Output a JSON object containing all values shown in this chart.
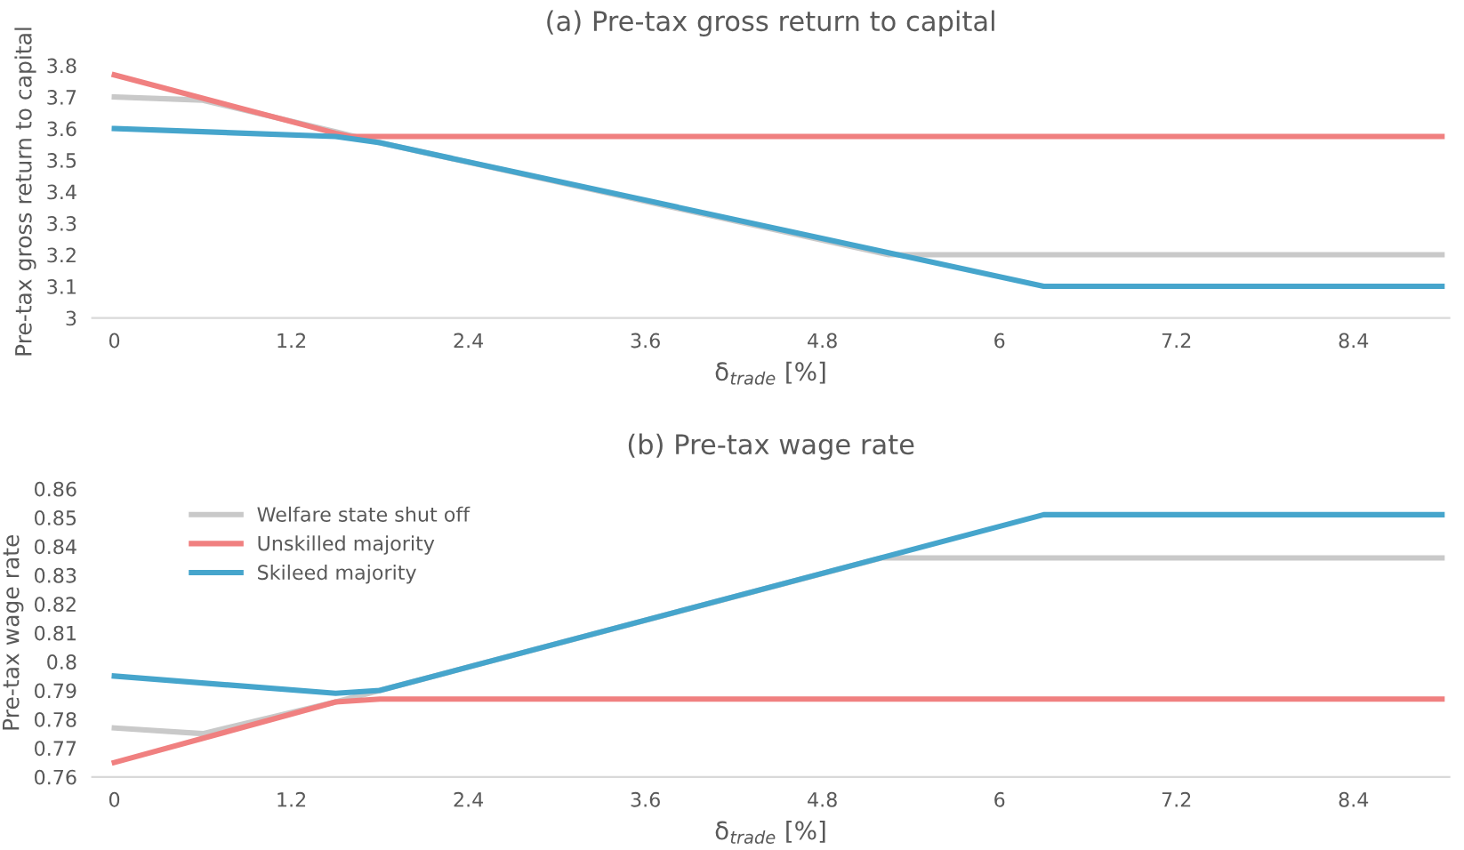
{
  "chart_data": [
    {
      "type": "line",
      "title": "(a) Pre-tax gross return to capital",
      "xlabel": "δ$_{trade}$ [%]",
      "ylabel": "Pre-tax gross return to capital",
      "xlim": [
        -0.15,
        9.05
      ],
      "xticks": [
        0,
        1.2,
        2.4,
        3.6,
        4.8,
        6,
        7.2,
        8.4
      ],
      "ylim": [
        3,
        3.8
      ],
      "yticks": [
        3,
        3.1,
        3.2,
        3.3,
        3.4,
        3.5,
        3.6,
        3.7,
        3.8
      ],
      "grid": false,
      "legend": false,
      "marker": "none",
      "line_style": "solid",
      "series": [
        {
          "color": "#c9c9c9",
          "x": [
            0,
            0.6,
            1.5,
            1.8,
            5.25,
            9
          ],
          "values": [
            3.7,
            3.69,
            3.59,
            3.555,
            3.2,
            3.2
          ]
        },
        {
          "color": "#f08080",
          "x": [
            0,
            1.5,
            1.6,
            9
          ],
          "values": [
            3.77,
            3.585,
            3.575,
            3.575
          ]
        },
        {
          "color": "#46a5cc",
          "x": [
            0,
            1.5,
            1.8,
            6.3,
            9
          ],
          "values": [
            3.6,
            3.575,
            3.555,
            3.1,
            3.1
          ]
        }
      ]
    },
    {
      "type": "line",
      "title": "(b) Pre-tax wage rate",
      "xlabel": "δ$_{trade}$ [%]",
      "ylabel": "Pre-tax wage rate",
      "xlim": [
        -0.15,
        9.05
      ],
      "xticks": [
        0,
        1.2,
        2.4,
        3.6,
        4.8,
        6,
        7.2,
        8.4
      ],
      "ylim": [
        0.76,
        0.86
      ],
      "yticks": [
        0.76,
        0.77,
        0.78,
        0.79,
        0.8,
        0.81,
        0.82,
        0.83,
        0.84,
        0.85,
        0.86
      ],
      "grid": false,
      "legend": "top left",
      "marker": "none",
      "line_style": "solid",
      "series": [
        {
          "name": "Welfare state shut off",
          "color": "#c9c9c9",
          "x": [
            0,
            0.6,
            1.5,
            1.8,
            5.2,
            9
          ],
          "values": [
            0.777,
            0.775,
            0.786,
            0.79,
            0.836,
            0.836
          ]
        },
        {
          "name": "Unskilled majority",
          "color": "#f08080",
          "x": [
            0,
            1.5,
            1.8,
            9
          ],
          "values": [
            0.765,
            0.786,
            0.787,
            0.787
          ]
        },
        {
          "name": "Skileed majority",
          "color": "#46a5cc",
          "x": [
            0,
            1.5,
            1.8,
            6.3,
            9
          ],
          "values": [
            0.795,
            0.789,
            0.79,
            0.851,
            0.851
          ]
        }
      ]
    }
  ]
}
